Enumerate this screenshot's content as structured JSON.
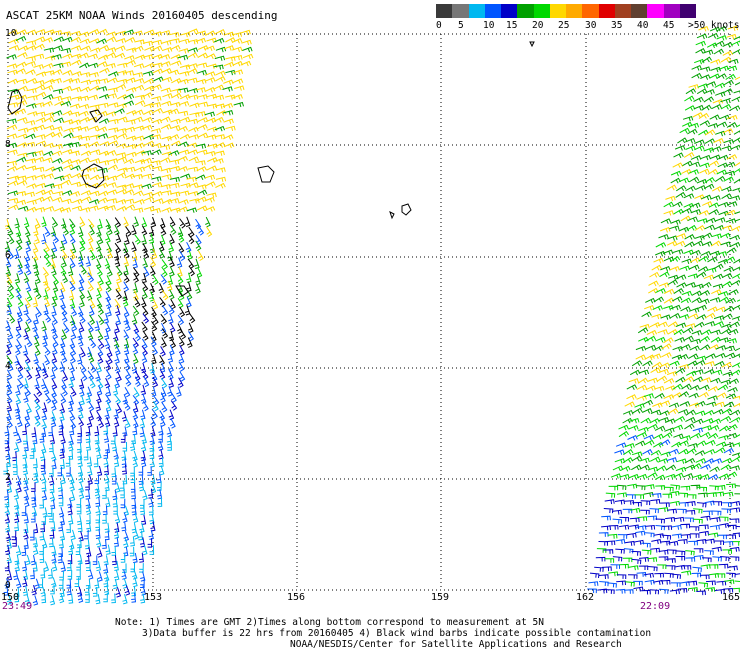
{
  "title": "ASCAT 25KM NOAA Winds 20160405 descending",
  "colorbar": {
    "colors": [
      "#3a3a3a",
      "#777777",
      "#00b8f0",
      "#0055ff",
      "#0000c8",
      "#00a000",
      "#00d800",
      "#ffd800",
      "#ffaa00",
      "#ff6600",
      "#e00000",
      "#a04020",
      "#604030",
      "#ff00ff",
      "#a000c0",
      "#400070"
    ],
    "labels": [
      "0",
      "5",
      "10",
      "15",
      "20",
      "25",
      "30",
      "35",
      "40",
      "45",
      ">50 knots"
    ]
  },
  "axes": {
    "lat_labels": [
      "10",
      "8",
      "6",
      "4",
      "2",
      "0"
    ],
    "lon_labels": [
      "150",
      "153",
      "156",
      "159",
      "162",
      "165"
    ]
  },
  "times": {
    "left": "23:49",
    "right": "22:09"
  },
  "notes": {
    "line1": "Note: 1) Times are GMT 2)Times along bottom correspond to measurement at 5N",
    "line2": "3)Data buffer is 22 hrs from 20160405 4) Black wind barbs indicate possible contamination",
    "line3": "NOAA/NESDIS/Center for Satellite Applications and Research"
  }
}
